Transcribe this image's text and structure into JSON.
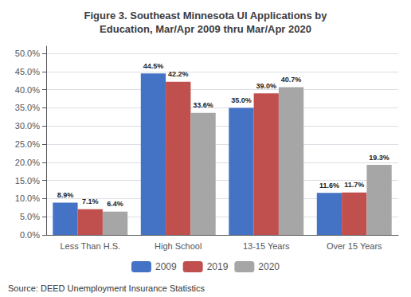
{
  "chart_data": {
    "type": "bar",
    "title": "Figure 3. Southeast Minnesota UI Applications by\nEducation, Mar/Apr 2009 thru Mar/Apr 2020",
    "categories": [
      "Less Than H.S.",
      "High School",
      "13-15 Years",
      "Over 15 Years"
    ],
    "series": [
      {
        "name": "2009",
        "color": "#4472C4",
        "values": [
          8.9,
          44.5,
          35.0,
          11.6
        ],
        "value_labels": [
          "8.9%",
          "44.5%",
          "35.0%",
          "11.6%"
        ]
      },
      {
        "name": "2019",
        "color": "#C0504D",
        "values": [
          7.1,
          42.2,
          39.0,
          11.7
        ],
        "value_labels": [
          "7.1%",
          "42.2%",
          "39.0%",
          "11.7%"
        ]
      },
      {
        "name": "2020",
        "color": "#A6A6A6",
        "values": [
          6.4,
          33.6,
          40.7,
          19.3
        ],
        "value_labels": [
          "6.4%",
          "33.6%",
          "40.7%",
          "19.3%"
        ]
      }
    ],
    "ylim": [
      0,
      52
    ],
    "yticks": [
      {
        "value": 0,
        "label": "0.0%"
      },
      {
        "value": 5,
        "label": "5.0%"
      },
      {
        "value": 10,
        "label": "10.0%"
      },
      {
        "value": 15,
        "label": "15.0%"
      },
      {
        "value": 20,
        "label": "20.0%"
      },
      {
        "value": 25,
        "label": "25.0%"
      },
      {
        "value": 30,
        "label": "30.0%"
      },
      {
        "value": 35,
        "label": "35.0%"
      },
      {
        "value": 40,
        "label": "40.0%"
      },
      {
        "value": 45,
        "label": "45.0%"
      },
      {
        "value": 50,
        "label": "50.0%"
      }
    ],
    "grid": true,
    "legend": "bottom",
    "data_labels": true,
    "annotations": [
      "Source: DEED Unemployment Insurance Statistics"
    ]
  }
}
